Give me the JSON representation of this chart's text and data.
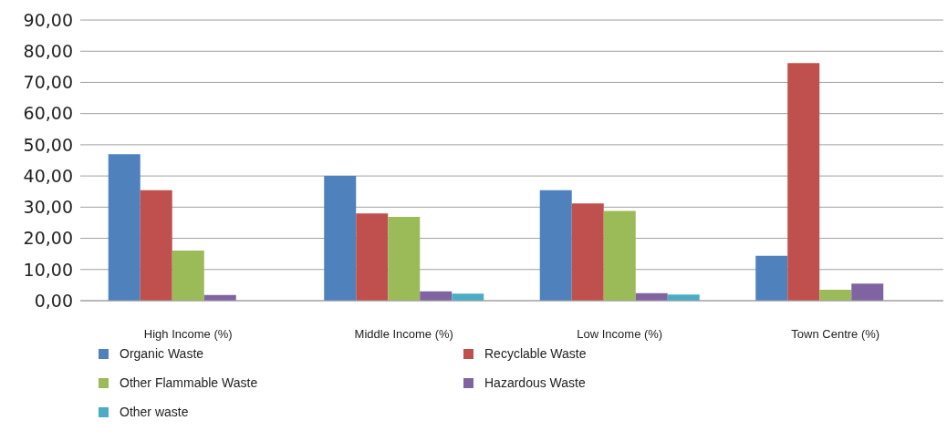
{
  "chart_data": {
    "type": "bar",
    "categories": [
      "High Income (%)",
      "Middle Income (%)",
      "Low Income (%)",
      "Town Centre (%)"
    ],
    "series": [
      {
        "name": "Organic Waste",
        "color": "#4f81bd",
        "values": [
          47,
          40,
          35.4,
          14.4
        ]
      },
      {
        "name": "Recyclable Waste",
        "color": "#c0504d",
        "values": [
          35.4,
          28,
          31.2,
          76.2
        ]
      },
      {
        "name": "Other Flammable Waste",
        "color": "#9bbb59",
        "values": [
          16.1,
          26.9,
          28.8,
          3.5
        ]
      },
      {
        "name": "Hazardous Waste",
        "color": "#8064a2",
        "values": [
          1.8,
          3,
          2.4,
          5.5
        ]
      },
      {
        "name": "Other waste",
        "color": "#4bacc6",
        "values": [
          null,
          2.3,
          2,
          null
        ]
      }
    ],
    "ylim": [
      0,
      90
    ],
    "yticks": [
      {
        "value": 0,
        "label": "0,00"
      },
      {
        "value": 10,
        "label": "10,00"
      },
      {
        "value": 20,
        "label": "20,00"
      },
      {
        "value": 30,
        "label": "30,00"
      },
      {
        "value": 40,
        "label": "40,00"
      },
      {
        "value": 50,
        "label": "50,00"
      },
      {
        "value": 60,
        "label": "60,00"
      },
      {
        "value": 70,
        "label": "70,00"
      },
      {
        "value": 80,
        "label": "80,00"
      },
      {
        "value": 90,
        "label": "90,00"
      }
    ],
    "grid": "y",
    "legend": "bottom"
  }
}
